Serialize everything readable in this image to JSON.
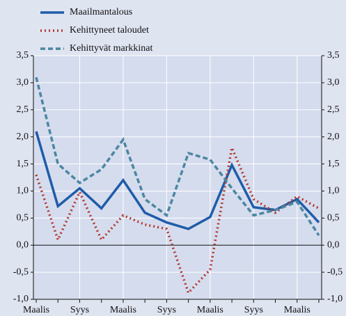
{
  "chart_data": {
    "type": "line",
    "categories": [
      "Maalis",
      null,
      "Syys",
      null,
      "Maalis",
      null,
      "Syys",
      null,
      "Maalis",
      null,
      "Syys",
      null,
      "Maalis",
      null
    ],
    "series": [
      {
        "name": "Maailmantalous",
        "color": "#1f5ca8",
        "style": "solid",
        "values": [
          2.1,
          0.72,
          1.05,
          0.68,
          1.2,
          0.6,
          0.42,
          0.3,
          0.52,
          1.48,
          0.7,
          0.65,
          0.85,
          0.42
        ]
      },
      {
        "name": "Kehittyneet taloudet",
        "color": "#b0392e",
        "style": "dotted",
        "values": [
          1.3,
          0.1,
          0.98,
          0.1,
          0.55,
          0.38,
          0.3,
          -0.88,
          -0.45,
          1.8,
          0.85,
          0.6,
          0.9,
          0.68
        ]
      },
      {
        "name": "Kehittyvät markkinat",
        "color": "#4b87a1",
        "style": "dashed",
        "values": [
          3.1,
          1.5,
          1.15,
          1.4,
          1.95,
          0.85,
          0.55,
          1.7,
          1.58,
          1.05,
          0.55,
          0.65,
          0.8,
          0.18
        ]
      }
    ],
    "ylim": [
      -1.0,
      3.5
    ],
    "yticks": [
      {
        "value": -1.0,
        "label": "-1,0"
      },
      {
        "value": -0.5,
        "label": "-0,5"
      },
      {
        "value": 0,
        "label": "0,0"
      },
      {
        "value": 0.5,
        "label": "0,5"
      },
      {
        "value": 1.0,
        "label": "1,0"
      },
      {
        "value": 1.5,
        "label": "1,5"
      },
      {
        "value": 2.0,
        "label": "2,0"
      },
      {
        "value": 2.5,
        "label": "2,5"
      },
      {
        "value": 3.0,
        "label": "3,0"
      },
      {
        "value": 3.5,
        "label": "3,5"
      }
    ],
    "y2lim": [
      -1.0,
      3.5
    ],
    "y2ticks": [
      {
        "value": -1.0,
        "label": "-1,0"
      },
      {
        "value": -0.5,
        "label": "-0,5"
      },
      {
        "value": 0,
        "label": "0,0"
      },
      {
        "value": 0.5,
        "label": "0,5"
      },
      {
        "value": 1.0,
        "label": "1,0"
      },
      {
        "value": 1.5,
        "label": "1,5"
      },
      {
        "value": 2.0,
        "label": "2,0"
      },
      {
        "value": 2.5,
        "label": "2,5"
      },
      {
        "value": 3.0,
        "label": "3,0"
      },
      {
        "value": 3.5,
        "label": "3,5"
      }
    ],
    "grid": true,
    "legend": "top-left"
  }
}
